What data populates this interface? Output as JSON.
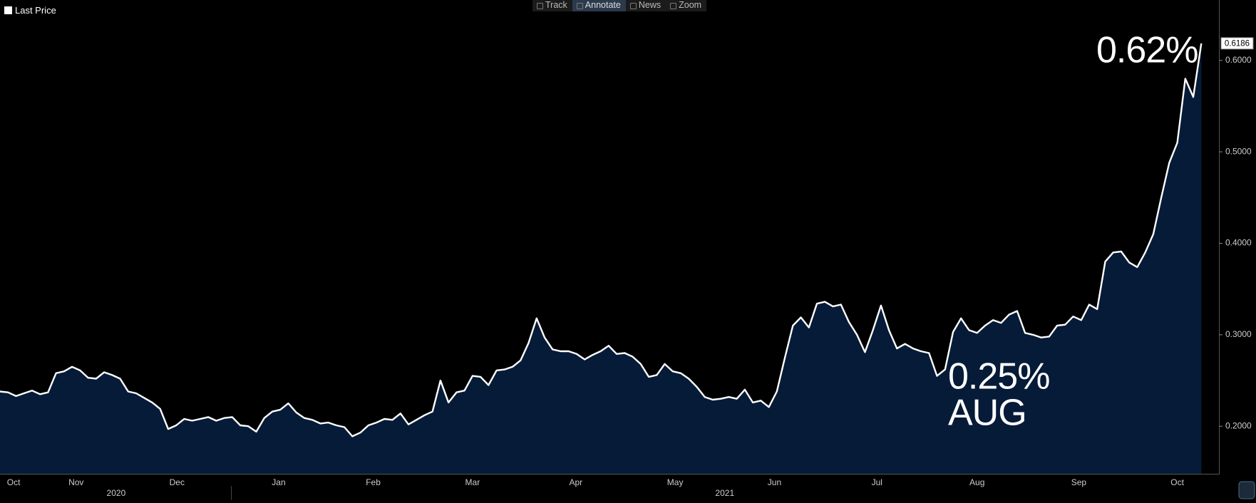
{
  "toolbar": [
    "Track",
    "Annotate",
    "News",
    "Zoom"
  ],
  "chart_data": {
    "type": "area",
    "series": [
      {
        "name": "Last Price",
        "color": "#ffffff",
        "fill": "#061b38",
        "values": [
          0.238,
          0.237,
          0.233,
          0.236,
          0.239,
          0.235,
          0.237,
          0.258,
          0.26,
          0.265,
          0.261,
          0.253,
          0.252,
          0.259,
          0.256,
          0.252,
          0.238,
          0.236,
          0.231,
          0.226,
          0.219,
          0.197,
          0.201,
          0.208,
          0.206,
          0.208,
          0.21,
          0.206,
          0.209,
          0.21,
          0.201,
          0.2,
          0.194,
          0.209,
          0.216,
          0.218,
          0.225,
          0.215,
          0.209,
          0.207,
          0.203,
          0.204,
          0.201,
          0.199,
          0.189,
          0.193,
          0.201,
          0.204,
          0.208,
          0.207,
          0.214,
          0.202,
          0.207,
          0.212,
          0.216,
          0.25,
          0.226,
          0.237,
          0.239,
          0.255,
          0.254,
          0.245,
          0.261,
          0.262,
          0.265,
          0.272,
          0.291,
          0.318,
          0.297,
          0.284,
          0.282,
          0.282,
          0.279,
          0.273,
          0.278,
          0.282,
          0.288,
          0.279,
          0.28,
          0.276,
          0.268,
          0.254,
          0.256,
          0.268,
          0.26,
          0.258,
          0.252,
          0.243,
          0.232,
          0.229,
          0.23,
          0.232,
          0.23,
          0.24,
          0.226,
          0.228,
          0.221,
          0.238,
          0.275,
          0.31,
          0.319,
          0.308,
          0.334,
          0.336,
          0.331,
          0.333,
          0.314,
          0.3,
          0.281,
          0.305,
          0.332,
          0.305,
          0.285,
          0.29,
          0.285,
          0.282,
          0.28,
          0.255,
          0.262,
          0.303,
          0.318,
          0.305,
          0.302,
          0.31,
          0.316,
          0.313,
          0.322,
          0.326,
          0.302,
          0.3,
          0.297,
          0.298,
          0.31,
          0.311,
          0.32,
          0.316,
          0.333,
          0.328,
          0.38,
          0.39,
          0.391,
          0.379,
          0.374,
          0.39,
          0.41,
          0.45,
          0.488,
          0.51,
          0.58,
          0.56,
          0.6186
        ]
      }
    ],
    "last_price": 0.6186,
    "xlim": [
      0,
      152.2
    ],
    "xticks": [
      {
        "value": 1.7,
        "label": "Oct"
      },
      {
        "value": 9.5,
        "label": "Nov"
      },
      {
        "value": 22.1,
        "label": "Dec"
      },
      {
        "value": 34.8,
        "label": "Jan"
      },
      {
        "value": 46.6,
        "label": "Feb"
      },
      {
        "value": 59,
        "label": "Mar"
      },
      {
        "value": 71.9,
        "label": "Apr"
      },
      {
        "value": 84.3,
        "label": "May"
      },
      {
        "value": 96.7,
        "label": "Jun"
      },
      {
        "value": 109.5,
        "label": "Jul"
      },
      {
        "value": 122,
        "label": "Aug"
      },
      {
        "value": 134.7,
        "label": "Sep"
      },
      {
        "value": 147,
        "label": "Oct"
      }
    ],
    "year_ticks": [
      {
        "value": 14.5,
        "label": "2020"
      },
      {
        "value": 90.5,
        "label": "2021"
      }
    ],
    "ylim": [
      0.148,
      0.666
    ],
    "yticks": [
      {
        "value": 0.2,
        "label": "0.2000"
      },
      {
        "value": 0.3,
        "label": "0.3000"
      },
      {
        "value": 0.4,
        "label": "0.4000"
      },
      {
        "value": 0.5,
        "label": "0.5000"
      },
      {
        "value": 0.6,
        "label": "0.6000"
      }
    ],
    "annotations": [
      "0.62%",
      "0.25%",
      "AUG"
    ]
  }
}
